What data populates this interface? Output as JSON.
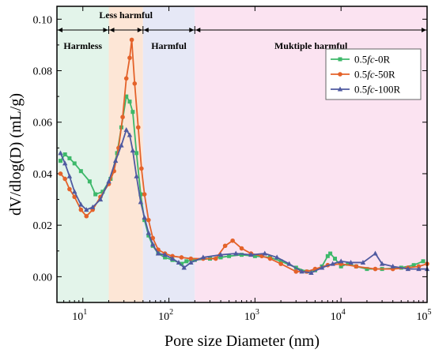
{
  "chart_data": {
    "type": "line",
    "xscale": "log",
    "xlabel": "Pore size Diameter (nm)",
    "ylabel": "dV/dlog(D) (mL/g)",
    "xlim": [
      5,
      100000
    ],
    "ylim": [
      -0.01,
      0.105
    ],
    "yticks": [
      {
        "v": 0.0,
        "label": "0.00"
      },
      {
        "v": 0.02,
        "label": "0.02"
      },
      {
        "v": 0.04,
        "label": "0.04"
      },
      {
        "v": 0.06,
        "label": "0.06"
      },
      {
        "v": 0.08,
        "label": "0.08"
      },
      {
        "v": 0.1,
        "label": "0.10"
      }
    ],
    "xticks": [
      {
        "v": 10,
        "base": "10",
        "exp": "1"
      },
      {
        "v": 100,
        "base": "10",
        "exp": "2"
      },
      {
        "v": 1000,
        "base": "10",
        "exp": "3"
      },
      {
        "v": 10000,
        "base": "10",
        "exp": "4"
      },
      {
        "v": 100000,
        "base": "10",
        "exp": "5"
      }
    ],
    "regions": [
      {
        "label": "Harmless",
        "from": 5,
        "to": 20,
        "color": "#e3f4ea"
      },
      {
        "label": "Less harmful",
        "from": 20,
        "to": 50,
        "color": "#fde6d6"
      },
      {
        "label": "Harmful",
        "from": 50,
        "to": 200,
        "color": "#e6e8f6"
      },
      {
        "label": "Muktiple harmful",
        "from": 200,
        "to": 100000,
        "color": "#fbe3f1"
      }
    ],
    "legend_position": "top-right",
    "series": [
      {
        "name_prefix": "0.5",
        "name_italic": "fc",
        "name_suffix": "-0R",
        "color": "#3db86a",
        "marker": "square",
        "points": [
          [
            5.5,
            0.045
          ],
          [
            6.2,
            0.0475
          ],
          [
            7,
            0.046
          ],
          [
            8,
            0.044
          ],
          [
            9.5,
            0.041
          ],
          [
            12,
            0.037
          ],
          [
            14,
            0.032
          ],
          [
            17,
            0.033
          ],
          [
            21,
            0.038
          ],
          [
            25,
            0.048
          ],
          [
            28,
            0.058
          ],
          [
            32,
            0.07
          ],
          [
            35,
            0.068
          ],
          [
            38,
            0.064
          ],
          [
            42,
            0.048
          ],
          [
            47,
            0.032
          ],
          [
            52,
            0.022
          ],
          [
            58,
            0.016
          ],
          [
            65,
            0.012
          ],
          [
            75,
            0.009
          ],
          [
            90,
            0.0075
          ],
          [
            110,
            0.0065
          ],
          [
            140,
            0.005
          ],
          [
            160,
            0.006
          ],
          [
            200,
            0.0065
          ],
          [
            300,
            0.007
          ],
          [
            400,
            0.0075
          ],
          [
            500,
            0.008
          ],
          [
            700,
            0.0085
          ],
          [
            1000,
            0.008
          ],
          [
            1500,
            0.0075
          ],
          [
            2000,
            0.006
          ],
          [
            3000,
            0.0035
          ],
          [
            4000,
            0.002
          ],
          [
            5000,
            0.0025
          ],
          [
            6000,
            0.004
          ],
          [
            7000,
            0.008
          ],
          [
            7500,
            0.009
          ],
          [
            8500,
            0.007
          ],
          [
            10000,
            0.004
          ],
          [
            12000,
            0.005
          ],
          [
            15000,
            0.004
          ],
          [
            20000,
            0.003
          ],
          [
            30000,
            0.003
          ],
          [
            50000,
            0.0035
          ],
          [
            70000,
            0.0045
          ],
          [
            90000,
            0.006
          ]
        ]
      },
      {
        "name_prefix": "0.5",
        "name_italic": "fc",
        "name_suffix": "-50R",
        "color": "#e4622a",
        "marker": "circle",
        "points": [
          [
            5.5,
            0.04
          ],
          [
            6.2,
            0.038
          ],
          [
            7,
            0.034
          ],
          [
            8,
            0.031
          ],
          [
            9.5,
            0.026
          ],
          [
            11,
            0.0235
          ],
          [
            13,
            0.026
          ],
          [
            16,
            0.031
          ],
          [
            20,
            0.036
          ],
          [
            23,
            0.041
          ],
          [
            26,
            0.05
          ],
          [
            29,
            0.062
          ],
          [
            32,
            0.077
          ],
          [
            35,
            0.085
          ],
          [
            37,
            0.092
          ],
          [
            40,
            0.075
          ],
          [
            44,
            0.058
          ],
          [
            48,
            0.042
          ],
          [
            52,
            0.032
          ],
          [
            58,
            0.022
          ],
          [
            65,
            0.015
          ],
          [
            75,
            0.0105
          ],
          [
            90,
            0.009
          ],
          [
            110,
            0.008
          ],
          [
            140,
            0.0075
          ],
          [
            180,
            0.007
          ],
          [
            250,
            0.007
          ],
          [
            350,
            0.007
          ],
          [
            450,
            0.012
          ],
          [
            550,
            0.014
          ],
          [
            700,
            0.011
          ],
          [
            900,
            0.009
          ],
          [
            1200,
            0.008
          ],
          [
            1500,
            0.007
          ],
          [
            2000,
            0.005
          ],
          [
            3000,
            0.002
          ],
          [
            4000,
            0.002
          ],
          [
            5000,
            0.003
          ],
          [
            7000,
            0.0045
          ],
          [
            10000,
            0.005
          ],
          [
            15000,
            0.004
          ],
          [
            25000,
            0.003
          ],
          [
            40000,
            0.003
          ],
          [
            60000,
            0.0035
          ],
          [
            80000,
            0.004
          ],
          [
            100000,
            0.005
          ]
        ]
      },
      {
        "name_prefix": "0.5",
        "name_italic": "fc",
        "name_suffix": "-100R",
        "color": "#4f5aa0",
        "marker": "triangle",
        "points": [
          [
            5.5,
            0.048
          ],
          [
            6.2,
            0.044
          ],
          [
            7,
            0.039
          ],
          [
            8,
            0.033
          ],
          [
            9.5,
            0.028
          ],
          [
            11,
            0.026
          ],
          [
            13,
            0.027
          ],
          [
            16,
            0.03
          ],
          [
            20,
            0.037
          ],
          [
            24,
            0.045
          ],
          [
            28,
            0.051
          ],
          [
            32,
            0.057
          ],
          [
            35,
            0.055
          ],
          [
            38,
            0.049
          ],
          [
            42,
            0.039
          ],
          [
            47,
            0.029
          ],
          [
            52,
            0.023
          ],
          [
            58,
            0.017
          ],
          [
            65,
            0.0125
          ],
          [
            75,
            0.009
          ],
          [
            90,
            0.0085
          ],
          [
            110,
            0.007
          ],
          [
            130,
            0.0055
          ],
          [
            150,
            0.0035
          ],
          [
            180,
            0.0055
          ],
          [
            250,
            0.0075
          ],
          [
            400,
            0.0085
          ],
          [
            600,
            0.009
          ],
          [
            900,
            0.0085
          ],
          [
            1300,
            0.009
          ],
          [
            1800,
            0.0075
          ],
          [
            2500,
            0.005
          ],
          [
            3500,
            0.002
          ],
          [
            4500,
            0.0015
          ],
          [
            6000,
            0.0035
          ],
          [
            8000,
            0.005
          ],
          [
            10000,
            0.006
          ],
          [
            13000,
            0.0055
          ],
          [
            18000,
            0.0055
          ],
          [
            25000,
            0.009
          ],
          [
            30000,
            0.005
          ],
          [
            40000,
            0.004
          ],
          [
            60000,
            0.003
          ],
          [
            80000,
            0.003
          ],
          [
            100000,
            0.003
          ]
        ]
      }
    ]
  }
}
